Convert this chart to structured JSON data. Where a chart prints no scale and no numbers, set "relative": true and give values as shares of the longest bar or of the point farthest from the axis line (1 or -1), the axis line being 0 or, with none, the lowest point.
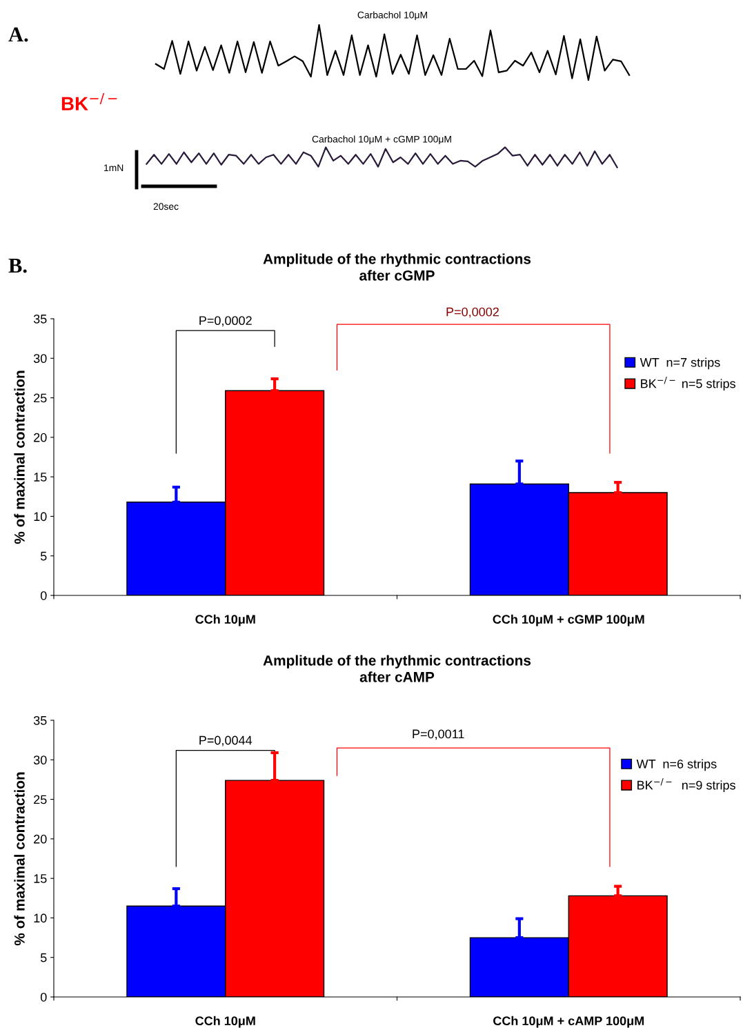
{
  "chart_data": [
    {
      "type": "line",
      "title": "Carbachol 10μM",
      "relative": true,
      "categories": [
        null,
        null,
        null,
        null,
        null,
        null,
        null,
        null,
        null,
        null,
        null,
        null,
        null,
        null,
        null,
        null,
        null,
        null,
        null,
        null,
        null,
        null,
        null,
        null,
        null,
        null,
        null,
        null,
        null,
        null,
        null,
        null,
        null,
        null,
        null,
        null,
        null,
        null,
        null,
        null,
        null,
        null,
        null,
        null,
        null,
        null,
        null,
        null,
        null,
        null,
        null,
        null,
        null,
        null,
        null,
        null,
        null,
        null,
        null
      ],
      "series": [
        {
          "color": "#000000",
          "values": [
            0.29,
            0.2,
            0.71,
            0.11,
            0.7,
            0.17,
            0.6,
            0.18,
            0.63,
            0.13,
            0.7,
            0.14,
            0.69,
            0.13,
            0.7,
            0.26,
            0.34,
            0.43,
            0.34,
            0.06,
            1.0,
            0.09,
            0.53,
            0.09,
            0.81,
            0.09,
            0.63,
            0.06,
            0.83,
            0.11,
            0.46,
            0.11,
            0.81,
            0.09,
            0.45,
            0.09,
            0.75,
            0.2,
            0.2,
            0.35,
            0.07,
            0.9,
            0.14,
            0.17,
            0.35,
            0.26,
            0.5,
            0.14,
            0.53,
            0.1,
            0.8,
            0.03,
            0.74,
            0,
            0.79,
            0.17,
            0.37,
            0.34,
            0.09
          ]
        }
      ],
      "annotations": [
        "A.",
        "BK$^{−/−}$"
      ]
    },
    {
      "type": "line",
      "title": "Carbachol 10μM + cGMP 100μM",
      "relative": true,
      "categories": [
        null,
        null,
        null,
        null,
        null,
        null,
        null,
        null,
        null,
        null,
        null,
        null,
        null,
        null,
        null,
        null,
        null,
        null,
        null,
        null,
        null,
        null,
        null,
        null,
        null,
        null,
        null,
        null,
        null,
        null,
        null,
        null,
        null,
        null,
        null,
        null,
        null,
        null,
        null,
        null,
        null,
        null,
        null,
        null,
        null,
        null,
        null,
        null,
        null,
        null,
        null,
        null,
        null,
        null,
        null,
        null,
        null,
        null,
        null,
        null,
        null,
        null,
        null,
        null
      ],
      "series": [
        {
          "color": "#2a1a3a",
          "values": [
            0.17,
            0.63,
            0.17,
            0.67,
            0.17,
            0.75,
            0.25,
            0.7,
            0.17,
            0.7,
            0.13,
            0.63,
            0.58,
            0.17,
            0.63,
            0.17,
            0.5,
            0.63,
            0.17,
            0.63,
            0.17,
            0.75,
            0.58,
            0.03,
            1.0,
            0.33,
            0.58,
            0.17,
            0.63,
            0.17,
            0.67,
            0.03,
            0.92,
            0.25,
            0.5,
            0.17,
            0.7,
            0.17,
            0.67,
            0.17,
            0.58,
            0.17,
            0.33,
            0.3,
            0.03,
            0.33,
            0.5,
            0.67,
            1.0,
            0.58,
            0.63,
            0.08,
            0.63,
            0.13,
            0.63,
            0.08,
            0.63,
            0.17,
            0.75,
            0.08,
            0.8,
            0.17,
            0.63,
            0
          ]
        }
      ],
      "annotations": [
        "1mN",
        "20sec"
      ]
    },
    {
      "type": "bar",
      "title": "Amplitude of the rhythmic contractions\nafter cGMP",
      "ylabel": "% of maximal contraction",
      "categories": [
        "CCh 10μM",
        "CCh 10μM + cGMP 100μM"
      ],
      "series": [
        {
          "name": "WT  n=7 strips",
          "color": "#0000ff",
          "values": [
            11.8,
            14.1
          ],
          "errors": [
            [
              11.8,
              13.7
            ],
            [
              14.1,
              17.0
            ]
          ]
        },
        {
          "name": "BK$^{−/−}$ n=5 strips",
          "color": "#ff0000",
          "values": [
            25.9,
            13.0
          ],
          "errors": [
            [
              25.9,
              27.4
            ],
            [
              13.0,
              14.3
            ]
          ]
        }
      ],
      "ylim": [
        0,
        35
      ],
      "yticks": [
        0,
        5,
        10,
        15,
        20,
        25,
        30,
        35
      ],
      "grid": false,
      "legend": "top right",
      "annotations": [
        "B.",
        "P=0,0002",
        "P=0,0002"
      ]
    },
    {
      "type": "bar",
      "title": "Amplitude of the rhythmic contractions\nafter cAMP",
      "ylabel": "% of maximal contraction",
      "categories": [
        "CCh 10μM",
        "CCh 10μM + cAMP 100μM"
      ],
      "series": [
        {
          "name": "WT  n=6 strips",
          "color": "#0000ff",
          "values": [
            11.5,
            7.5
          ],
          "errors": [
            [
              11.5,
              13.7
            ],
            [
              7.5,
              9.9
            ]
          ]
        },
        {
          "name": "BK$^{−/−}$  n=9 strips",
          "color": "#ff0000",
          "values": [
            27.4,
            12.8
          ],
          "errors": [
            [
              27.4,
              30.9
            ],
            [
              12.8,
              14.0
            ]
          ]
        }
      ],
      "ylim": [
        0,
        35
      ],
      "yticks": [
        0,
        5,
        10,
        15,
        20,
        25,
        30,
        35
      ],
      "grid": false,
      "legend": "top right",
      "annotations": [
        "P=0,0044",
        "P=0,0011"
      ]
    }
  ]
}
